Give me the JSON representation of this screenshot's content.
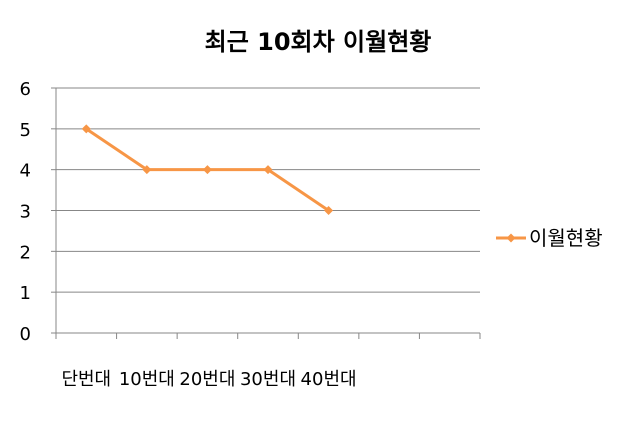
{
  "chart_data": {
    "type": "line",
    "title": "최근 10회차 이월현황",
    "xlabel": "",
    "ylabel": "",
    "categories": [
      "단번대",
      "10번대",
      "20번대",
      "30번대",
      "40번대",
      "",
      ""
    ],
    "series": [
      {
        "name": "이월현황",
        "values": [
          5,
          4,
          4,
          4,
          3,
          null,
          null
        ],
        "color": "#F79646"
      }
    ],
    "ylim": [
      0,
      6
    ],
    "yticks": [
      "0",
      "1",
      "2",
      "3",
      "4",
      "5",
      "6"
    ],
    "grid": true,
    "legend": "right"
  }
}
